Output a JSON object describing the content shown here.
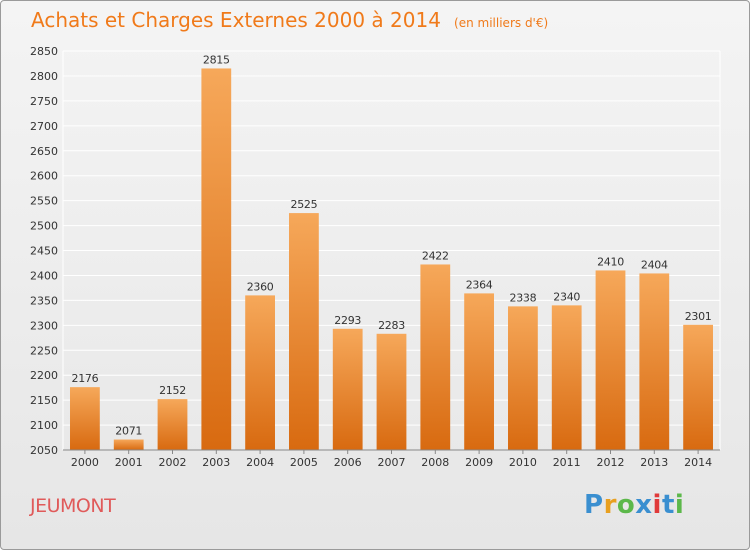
{
  "header": {
    "title": "Achats et Charges Externes 2000 à 2014",
    "unit": "(en milliers d'€)"
  },
  "footer": {
    "city": "JEUMONT",
    "logo_text": "Proxiti",
    "logo_colors": [
      "#3a8fd0",
      "#e8a020",
      "#5cb84a",
      "#3a8fd0",
      "#e03a3a",
      "#3a8fd0",
      "#5cb84a"
    ]
  },
  "colors": {
    "title": "#f07a1a",
    "bar_top": "#f6a85a",
    "bar_bottom": "#d86a10",
    "grid": "#ffffff",
    "city": "#e05a5a"
  },
  "chart_data": {
    "type": "bar",
    "categories": [
      "2000",
      "2001",
      "2002",
      "2003",
      "2004",
      "2005",
      "2006",
      "2007",
      "2008",
      "2009",
      "2010",
      "2011",
      "2012",
      "2013",
      "2014"
    ],
    "values": [
      2176,
      2071,
      2152,
      2815,
      2360,
      2525,
      2293,
      2283,
      2422,
      2364,
      2338,
      2340,
      2410,
      2404,
      2301
    ],
    "ylim": [
      2050,
      2850
    ],
    "yticks": [
      2050,
      2100,
      2150,
      2200,
      2250,
      2300,
      2350,
      2400,
      2450,
      2500,
      2550,
      2600,
      2650,
      2700,
      2750,
      2800,
      2850
    ],
    "grid": true,
    "data_labels": true
  }
}
